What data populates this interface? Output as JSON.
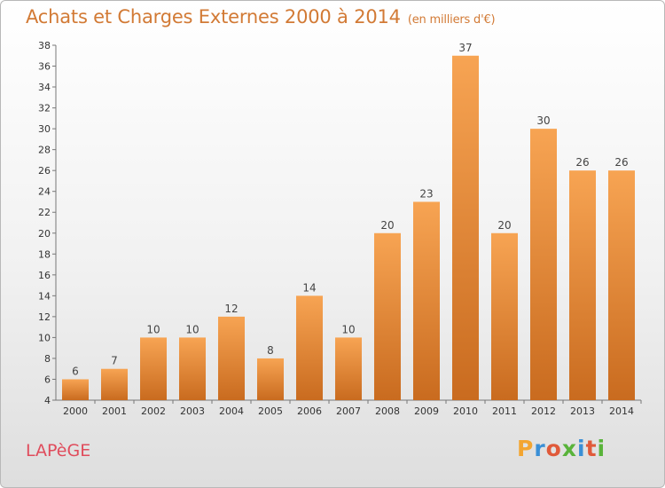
{
  "title": "Achats et Charges Externes 2000 à 2014",
  "subtitle": "(en milliers d'€)",
  "commune": "LAPèGE",
  "logo": {
    "text": "Proxiti",
    "letters": [
      "P",
      "r",
      "o",
      "x",
      "i",
      "t",
      "i"
    ],
    "colors": [
      "#f3a531",
      "#3a8fd6",
      "#e05a3a",
      "#59b33a",
      "#3a8fd6",
      "#e05a3a",
      "#59b33a"
    ]
  },
  "colors": {
    "bar": "#f29a44",
    "bar_dark": "#c96b1f",
    "title": "#d27a35",
    "commune": "#e04c5c"
  },
  "chart_data": {
    "type": "bar",
    "title": "Achats et Charges Externes 2000 à 2014",
    "subtitle": "(en milliers d'€)",
    "categories": [
      "2000",
      "2001",
      "2002",
      "2003",
      "2004",
      "2005",
      "2006",
      "2007",
      "2008",
      "2009",
      "2010",
      "2011",
      "2012",
      "2013",
      "2014"
    ],
    "values": [
      6,
      7,
      10,
      10,
      12,
      8,
      14,
      10,
      20,
      23,
      37,
      20,
      30,
      26,
      26
    ],
    "ylim": [
      4,
      38
    ],
    "yticks": [
      4,
      6,
      8,
      10,
      12,
      14,
      16,
      18,
      20,
      22,
      24,
      26,
      28,
      30,
      32,
      34,
      36,
      38
    ],
    "grid": false,
    "data_labels": true
  }
}
